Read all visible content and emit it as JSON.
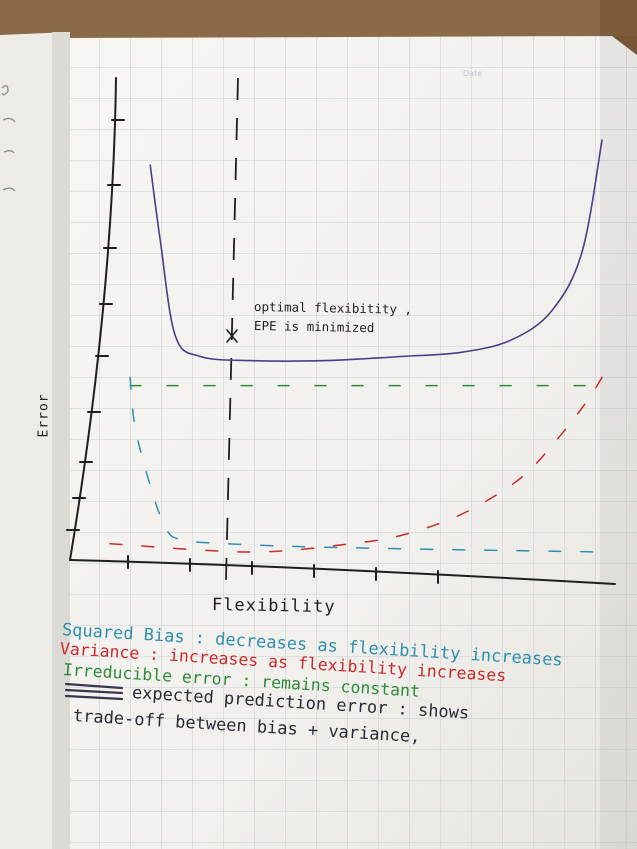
{
  "photo": {
    "subject": "",
    "colors": {
      "table": "#8a6a48",
      "paper": "#f4f3ef",
      "grid": "#c9ccd2",
      "ink": "#1f1f1f",
      "epe": "#4a3d8a",
      "irreducible": "#2e8c3a",
      "bias": "#2f8fb0",
      "variance": "#cc2a2a"
    }
  },
  "chart_data": {
    "type": "line",
    "title": "",
    "xlabel": "Flexibility",
    "ylabel": "Error",
    "annotation": {
      "line1": "optimal flexibitity ,",
      "line2": "EPE is minimized",
      "marker": "x"
    },
    "series": [
      {
        "color": "#4a3d8a",
        "style": "solid",
        "x": [
          0.1,
          0.12,
          0.15,
          0.2,
          0.3,
          0.45,
          0.6,
          0.72,
          0.82,
          0.9,
          0.96,
          1.0
        ],
        "y": [
          0.93,
          0.75,
          0.52,
          0.47,
          0.46,
          0.46,
          0.47,
          0.48,
          0.51,
          0.58,
          0.72,
          0.99
        ]
      },
      {
        "color": "#2e8c3a",
        "style": "dashed",
        "x": [
          0.06,
          1.0
        ],
        "y": [
          0.4,
          0.4
        ]
      },
      {
        "color": "#2f8fb0",
        "style": "dashed",
        "x": [
          0.06,
          0.07,
          0.1,
          0.13,
          0.16,
          0.25,
          0.5,
          1.0
        ],
        "y": [
          0.42,
          0.3,
          0.16,
          0.06,
          0.03,
          0.02,
          0.01,
          0.0
        ]
      },
      {
        "color": "#cc2a2a",
        "style": "dashed",
        "x": [
          0.02,
          0.3,
          0.5,
          0.6,
          0.7,
          0.78,
          0.85,
          0.91,
          0.95,
          0.98,
          1.0
        ],
        "y": [
          0.02,
          0.0,
          0.02,
          0.04,
          0.08,
          0.13,
          0.19,
          0.27,
          0.33,
          0.38,
          0.42
        ]
      }
    ],
    "legend_notes": {
      "bias": "Squared Bias : decreases as flexibility increases",
      "variance": "Variance : increases as flexibility increases",
      "irreducible": "Irreducible error : remains constant",
      "epe_line1": "expected prediction error : shows",
      "epe_line2": "trade-off between bias + variance,"
    }
  }
}
